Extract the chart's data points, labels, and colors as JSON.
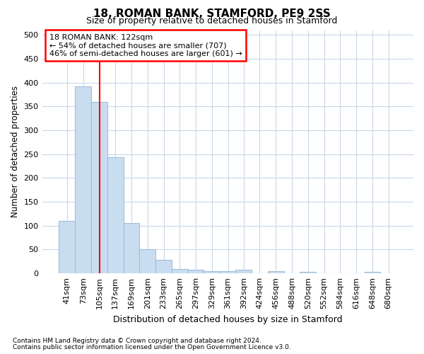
{
  "title": "18, ROMAN BANK, STAMFORD, PE9 2SS",
  "subtitle": "Size of property relative to detached houses in Stamford",
  "xlabel": "Distribution of detached houses by size in Stamford",
  "ylabel": "Number of detached properties",
  "footer_line1": "Contains HM Land Registry data © Crown copyright and database right 2024.",
  "footer_line2": "Contains public sector information licensed under the Open Government Licence v3.0.",
  "annotation_line1": "18 ROMAN BANK: 122sqm",
  "annotation_line2": "← 54% of detached houses are smaller (707)",
  "annotation_line3": "46% of semi-detached houses are larger (601) →",
  "bar_color": "#c9ddf0",
  "bar_edge_color": "#a0bedd",
  "red_line_x": 122,
  "categories": [
    "41sqm",
    "73sqm",
    "105sqm",
    "137sqm",
    "169sqm",
    "201sqm",
    "233sqm",
    "265sqm",
    "297sqm",
    "329sqm",
    "361sqm",
    "392sqm",
    "424sqm",
    "456sqm",
    "488sqm",
    "520sqm",
    "552sqm",
    "584sqm",
    "616sqm",
    "648sqm",
    "680sqm"
  ],
  "bin_edges": [
    41,
    73,
    105,
    137,
    169,
    201,
    233,
    265,
    297,
    329,
    361,
    392,
    424,
    456,
    488,
    520,
    552,
    584,
    616,
    648,
    680,
    712
  ],
  "values": [
    110,
    392,
    360,
    243,
    105,
    50,
    29,
    9,
    8,
    5,
    5,
    8,
    0,
    4,
    0,
    3,
    0,
    0,
    0,
    3,
    0
  ],
  "ylim": [
    0,
    510
  ],
  "yticks": [
    0,
    50,
    100,
    150,
    200,
    250,
    300,
    350,
    400,
    450,
    500
  ],
  "background_color": "#ffffff",
  "grid_color": "#c8d8eb"
}
